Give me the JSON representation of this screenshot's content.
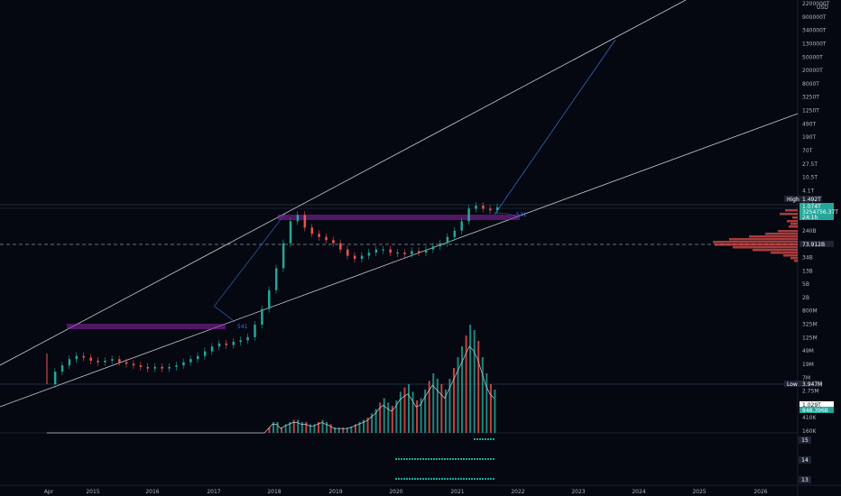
{
  "chart_data": {
    "type": "candlestick",
    "currency": "USD",
    "x_ticks": [
      "Apr",
      "2015",
      "2016",
      "2017",
      "2018",
      "2019",
      "2020",
      "2021",
      "2022",
      "2023",
      "2024",
      "2025",
      "2026"
    ],
    "y_ticks": [
      "2200000T",
      "900000T",
      "340000T",
      "130000T",
      "50000T",
      "20000T",
      "8000T",
      "3250T",
      "1250T",
      "490T",
      "190T",
      "70T",
      "27.5T",
      "10.5T",
      "4.1T",
      "1.5T",
      "600B",
      "240B",
      "90B",
      "34B",
      "13B",
      "5B",
      "2B",
      "800M",
      "325M",
      "125M",
      "49M",
      "19M",
      "7M",
      "2.75M",
      "1.1M",
      "410K",
      "160K"
    ],
    "price_tags": [
      {
        "label": "High",
        "value": "1.492T",
        "color": "#1e2433"
      },
      {
        "label": "",
        "value": "1.074T",
        "color": "#26a69a"
      },
      {
        "label": "",
        "value": "3254756.37T",
        "color": "#26a69a"
      },
      {
        "label": "",
        "value": "24:1h",
        "color": "#26a69a"
      },
      {
        "label": "",
        "value": "73.912B",
        "color": "#1e2433"
      },
      {
        "label": "Low",
        "value": "3.947M",
        "color": "#1e2433"
      },
      {
        "label": "",
        "value": "1.029T",
        "color": "#ffffff"
      },
      {
        "label": "",
        "value": "848.396B",
        "color": "#26a69a"
      }
    ],
    "pane_labels": [
      "15",
      "14",
      "13"
    ],
    "annotations": [
      "541",
      "541"
    ],
    "series": [
      {
        "name": "price",
        "values": [
          [
            0,
            2.3
          ],
          [
            2,
            2.7
          ],
          [
            4,
            2.9
          ],
          [
            6,
            3.1
          ],
          [
            8,
            3.2
          ],
          [
            10,
            3.15
          ],
          [
            12,
            3.05
          ],
          [
            14,
            3.0
          ],
          [
            16,
            3.05
          ],
          [
            18,
            3.1
          ],
          [
            20,
            3.0
          ],
          [
            22,
            2.95
          ],
          [
            24,
            2.9
          ],
          [
            26,
            2.85
          ],
          [
            28,
            2.8
          ],
          [
            30,
            2.85
          ],
          [
            32,
            2.8
          ],
          [
            34,
            2.85
          ],
          [
            36,
            2.9
          ],
          [
            38,
            3.0
          ],
          [
            40,
            3.1
          ],
          [
            42,
            3.2
          ],
          [
            44,
            3.35
          ],
          [
            46,
            3.5
          ],
          [
            48,
            3.6
          ],
          [
            50,
            3.55
          ],
          [
            52,
            3.65
          ],
          [
            54,
            3.7
          ],
          [
            56,
            3.8
          ],
          [
            58,
            4.2
          ],
          [
            60,
            4.7
          ],
          [
            62,
            5.3
          ],
          [
            64,
            6.0
          ],
          [
            66,
            6.8
          ],
          [
            68,
            7.5
          ],
          [
            70,
            7.7
          ],
          [
            72,
            7.3
          ],
          [
            74,
            7.1
          ],
          [
            76,
            7.0
          ],
          [
            78,
            6.9
          ],
          [
            80,
            6.8
          ],
          [
            82,
            6.6
          ],
          [
            84,
            6.4
          ],
          [
            86,
            6.3
          ],
          [
            88,
            6.4
          ],
          [
            90,
            6.5
          ],
          [
            92,
            6.6
          ],
          [
            94,
            6.6
          ],
          [
            96,
            6.5
          ],
          [
            98,
            6.5
          ],
          [
            100,
            6.45
          ],
          [
            102,
            6.55
          ],
          [
            104,
            6.5
          ],
          [
            106,
            6.6
          ],
          [
            108,
            6.7
          ],
          [
            110,
            6.8
          ],
          [
            112,
            7.0
          ],
          [
            114,
            7.2
          ],
          [
            116,
            7.5
          ],
          [
            118,
            7.9
          ],
          [
            120,
            8.0
          ],
          [
            122,
            7.9
          ],
          [
            124,
            7.85
          ],
          [
            126,
            7.95
          ]
        ]
      },
      {
        "name": "volume",
        "values": [
          0,
          0,
          0,
          0,
          0,
          0,
          0,
          0,
          0,
          0,
          0,
          0,
          0,
          0,
          0,
          0,
          0,
          0,
          0,
          0,
          0,
          0,
          0,
          0,
          0,
          0,
          0,
          0,
          0,
          0,
          0,
          0,
          0,
          0,
          0,
          0,
          0,
          0,
          0,
          0,
          0,
          0,
          0,
          0,
          0,
          0,
          0,
          0,
          0,
          0,
          0,
          0,
          0,
          0,
          0.05,
          0.1,
          0.1,
          0.05,
          0.08,
          0.1,
          0.12,
          0.12,
          0.1,
          0.1,
          0.08,
          0.08,
          0.1,
          0.12,
          0.1,
          0.08,
          0.05,
          0.05,
          0.05,
          0.05,
          0.06,
          0.08,
          0.1,
          0.12,
          0.14,
          0.18,
          0.22,
          0.28,
          0.32,
          0.28,
          0.25,
          0.3,
          0.38,
          0.42,
          0.45,
          0.38,
          0.3,
          0.32,
          0.4,
          0.48,
          0.55,
          0.5,
          0.45,
          0.4,
          0.5,
          0.6,
          0.7,
          0.8,
          0.9,
          1.0,
          0.95,
          0.85,
          0.7,
          0.55,
          0.45,
          0.4,
          0.35,
          0.3,
          0.28
        ]
      }
    ]
  }
}
